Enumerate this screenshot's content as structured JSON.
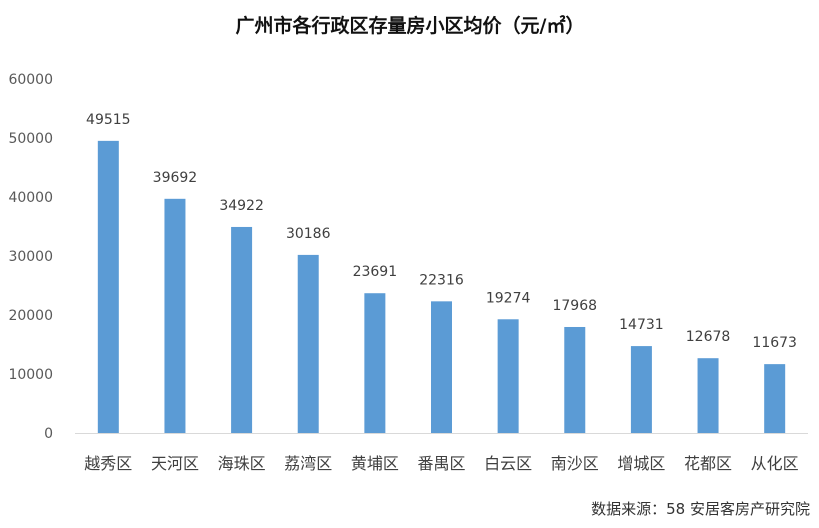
{
  "chart_data": {
    "type": "bar",
    "title": "广州市各行政区存量房小区均价（元/㎡）",
    "categories": [
      "越秀区",
      "天河区",
      "海珠区",
      "荔湾区",
      "黄埔区",
      "番禺区",
      "白云区",
      "南沙区",
      "增城区",
      "花都区",
      "从化区"
    ],
    "values": [
      49515,
      39692,
      34922,
      30186,
      23691,
      22316,
      19274,
      17968,
      14731,
      12678,
      11673
    ],
    "ylim": [
      0,
      60000
    ],
    "yticks": [
      "0",
      "10000",
      "20000",
      "30000",
      "40000",
      "50000",
      "60000"
    ],
    "grid": false,
    "bar_color": "#5B9BD5"
  },
  "source": "数据来源：58 安居客房产研究院"
}
